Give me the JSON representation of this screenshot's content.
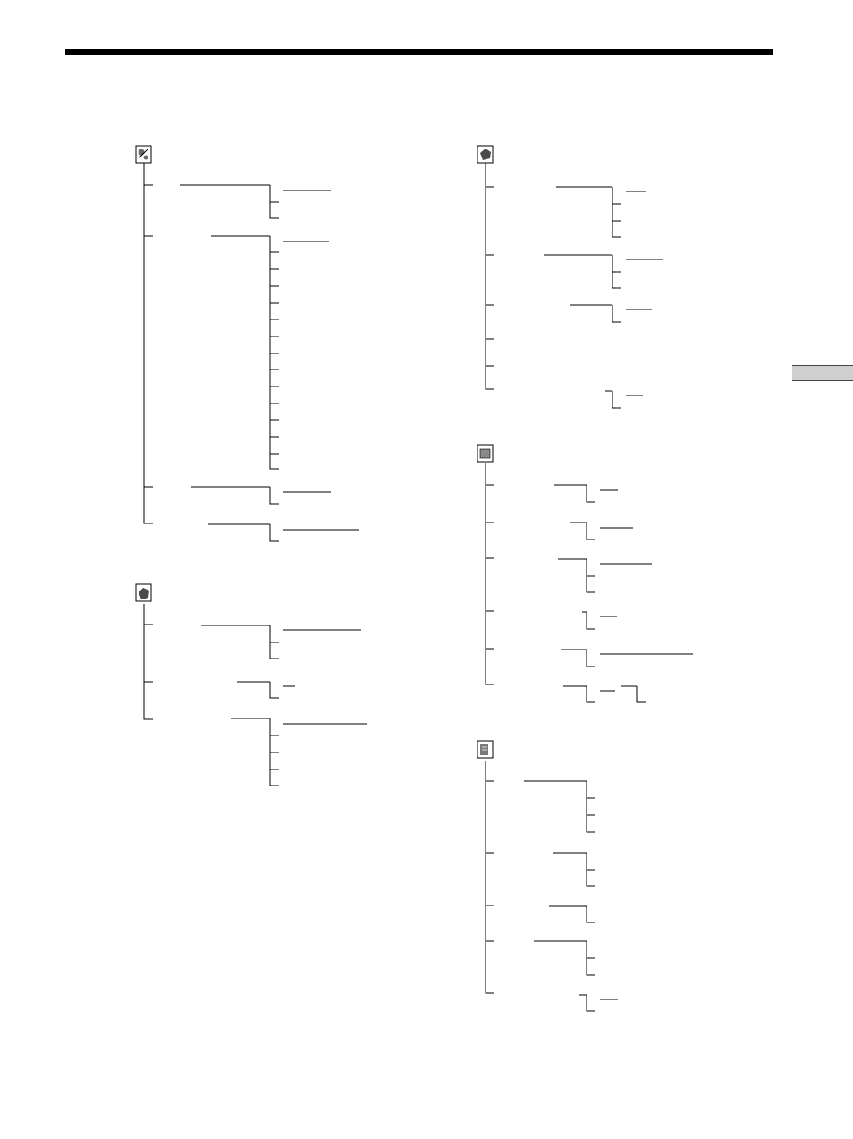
{
  "colors": {
    "line": "#000000",
    "tab": "#cfcfcf",
    "icon_fill": "#6a6a6a"
  },
  "icons": [
    {
      "name": "setup-gear-icon"
    },
    {
      "name": "cassette-tape-icon"
    },
    {
      "name": "camera-tape-icon"
    },
    {
      "name": "memory-card-icon"
    },
    {
      "name": "manual-book-icon"
    }
  ]
}
